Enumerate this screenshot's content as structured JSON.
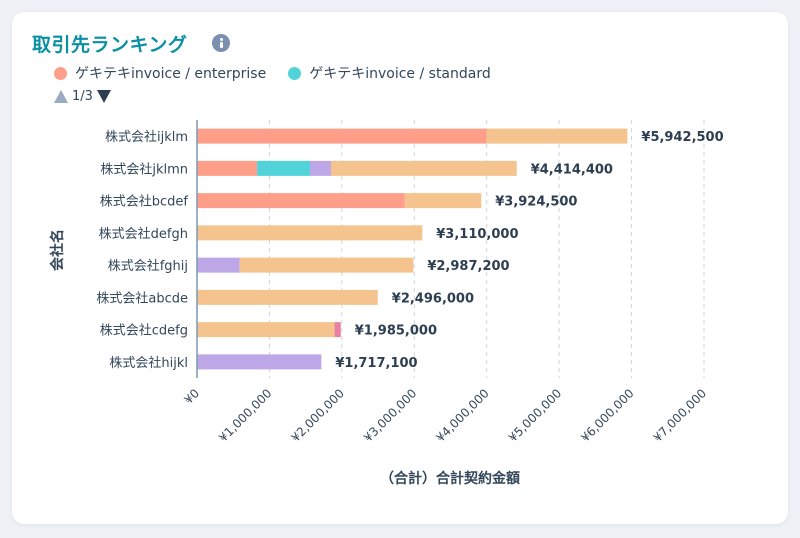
{
  "card": {
    "title": "取引先ランキング",
    "info_icon": "info-icon"
  },
  "legend": [
    {
      "label": "ゲキテキinvoice / enterprise",
      "color": "#ff9f8a"
    },
    {
      "label": "ゲキテキinvoice / standard",
      "color": "#51d3d9"
    }
  ],
  "pager": {
    "text": "1/3",
    "up_icon": "triangle-up-icon",
    "down_icon": "triangle-down-icon"
  },
  "colors": {
    "enterprise": "#ff9f8a",
    "standard": "#51d3d9",
    "purple": "#bea7e6",
    "orange": "#f5c48e",
    "pink": "#ea7fa2"
  },
  "chart_data": {
    "type": "bar",
    "orientation": "horizontal",
    "stacked": true,
    "title": "取引先ランキング",
    "xlabel": "（合計）合計契約金額",
    "ylabel": "会社名",
    "xlim": [
      0,
      7000000
    ],
    "x_ticks": [
      "¥0",
      "¥1,000,000",
      "¥2,000,000",
      "¥3,000,000",
      "¥4,000,000",
      "¥5,000,000",
      "¥6,000,000",
      "¥7,000,000"
    ],
    "grid": true,
    "legend_position": "top-left",
    "categories": [
      "株式会社ijklm",
      "株式会社jklmn",
      "株式会社bcdef",
      "株式会社defgh",
      "株式会社fghij",
      "株式会社abcde",
      "株式会社cdefg",
      "株式会社hijkl"
    ],
    "totals": [
      "¥5,942,500",
      "¥4,414,400",
      "¥3,924,500",
      "¥3,110,000",
      "¥2,987,200",
      "¥2,496,000",
      "¥1,985,000",
      "¥1,717,100"
    ],
    "series": [
      {
        "name": "ゲキテキinvoice / enterprise",
        "color": "#ff9f8a",
        "values": [
          4000000,
          830000,
          2870000,
          0,
          0,
          0,
          0,
          0
        ]
      },
      {
        "name": "ゲキテキinvoice / standard",
        "color": "#51d3d9",
        "values": [
          0,
          730000,
          0,
          0,
          0,
          0,
          0,
          0
        ]
      },
      {
        "name": "other (purple)",
        "color": "#bea7e6",
        "values": [
          0,
          290000,
          0,
          0,
          590000,
          0,
          0,
          1717100
        ]
      },
      {
        "name": "other (orange)",
        "color": "#f5c48e",
        "values": [
          1942500,
          2564400,
          1054500,
          3110000,
          2397200,
          2496000,
          1900000,
          0
        ]
      },
      {
        "name": "other (pink)",
        "color": "#ea7fa2",
        "values": [
          0,
          0,
          0,
          0,
          0,
          0,
          85000,
          0
        ]
      }
    ]
  }
}
